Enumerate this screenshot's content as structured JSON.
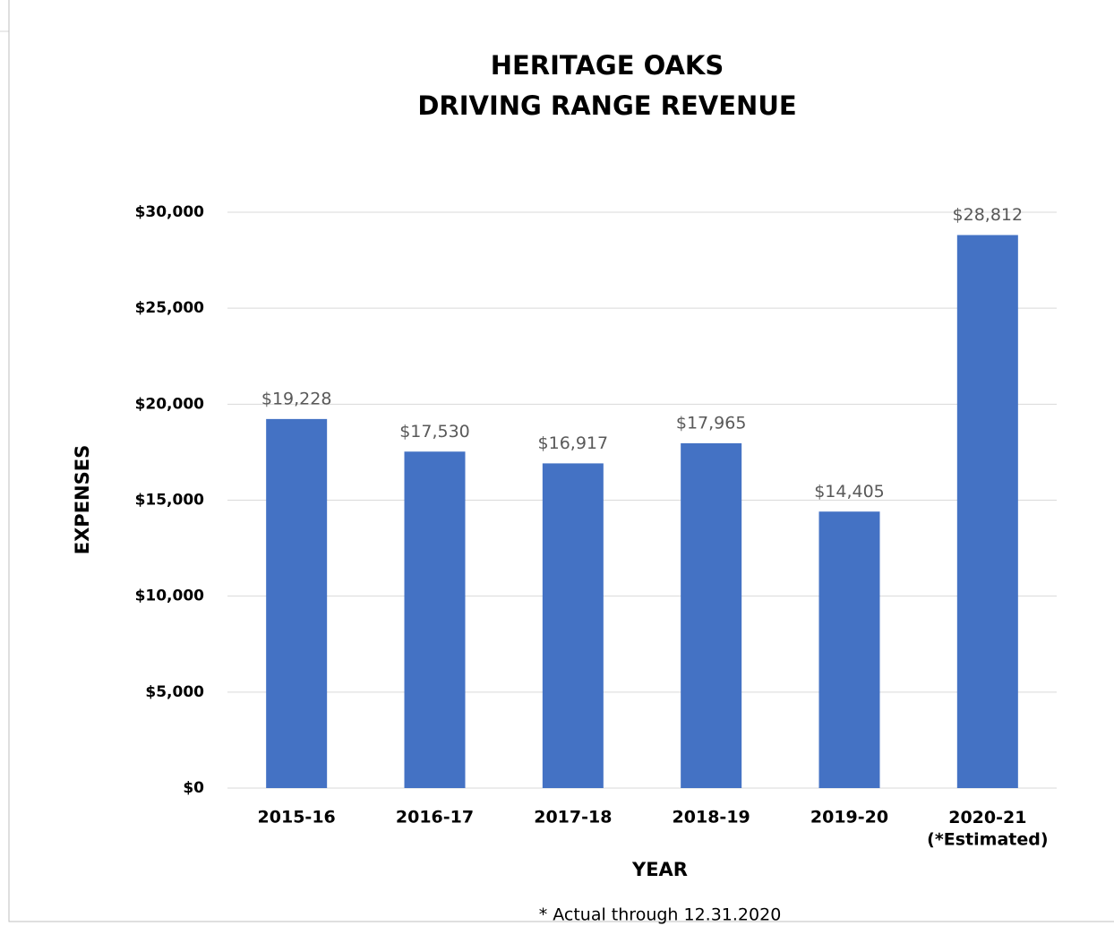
{
  "chart_data": {
    "type": "bar",
    "title": [
      "HERITAGE OAKS",
      "DRIVING RANGE REVENUE"
    ],
    "ylabel": "EXPENSES",
    "xlabel": "YEAR",
    "footnote": "* Actual through 12.31.2020",
    "categories": [
      "2015-16",
      "2016-17",
      "2017-18",
      "2018-19",
      "2019-20",
      "2020-21\n(*Estimated)"
    ],
    "values": [
      19228,
      17530,
      16917,
      17965,
      14405,
      28812
    ],
    "value_labels": [
      "$19,228",
      "$17,530",
      "$16,917",
      "$17,965",
      "$14,405",
      "$28,812"
    ],
    "color": "#4472c4",
    "ylim": [
      0,
      30000
    ],
    "yticks": [
      {
        "value": 0,
        "label": "$0"
      },
      {
        "value": 5000,
        "label": "$5,000"
      },
      {
        "value": 10000,
        "label": "$10,000"
      },
      {
        "value": 15000,
        "label": "$15,000"
      },
      {
        "value": 20000,
        "label": "$20,000"
      },
      {
        "value": 25000,
        "label": "$25,000"
      },
      {
        "value": 30000,
        "label": "$30,000"
      }
    ],
    "grid": true
  }
}
